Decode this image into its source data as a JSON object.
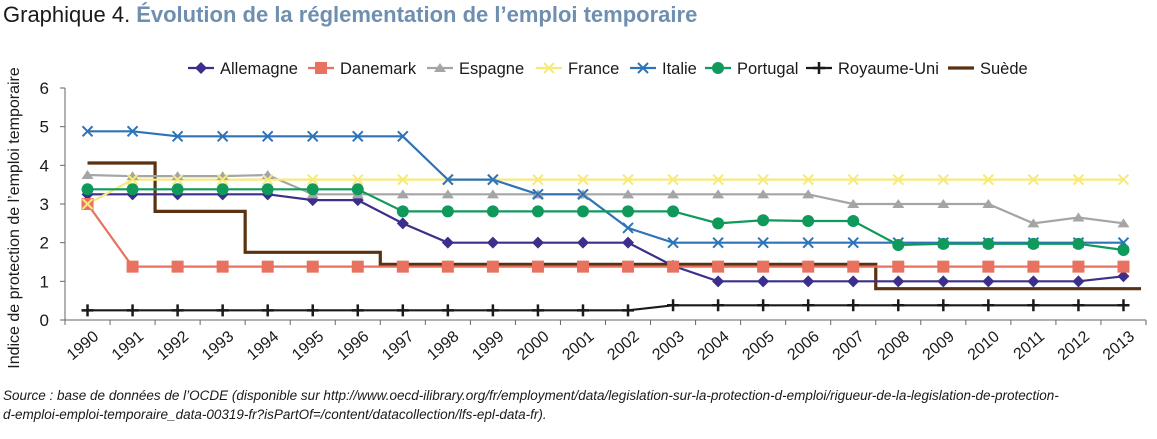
{
  "header": {
    "prefix": "Graphique 4.",
    "title": "Évolution de la réglementation de l’emploi temporaire"
  },
  "source": {
    "line1": "Source : base de données de l’OCDE (disponible sur http://www.oecd-ilibrary.org/fr/employment/data/legislation-sur-la-protection-d-emploi/rigueur-de-la-legislation-de-protection-",
    "line2": "d-emploi-emploi-temporaire_data-00319-fr?isPartOf=/content/datacollection/lfs-epl-data-fr)."
  },
  "chart_data": {
    "type": "line",
    "title": "Évolution de la réglementation de l’emploi temporaire",
    "xlabel": "",
    "ylabel": "Indice de protection de l’emploi temporaire",
    "ylim": [
      0,
      6
    ],
    "yticks": [
      "0",
      "1",
      "2",
      "3",
      "4",
      "5",
      "6"
    ],
    "grid": false,
    "legend_position": "top",
    "categories": [
      "1990",
      "1991",
      "1992",
      "1993",
      "1994",
      "1995",
      "1996",
      "1997",
      "1998",
      "1999",
      "2000",
      "2001",
      "2002",
      "2003",
      "2004",
      "2005",
      "2006",
      "2007",
      "2008",
      "2009",
      "2010",
      "2011",
      "2012",
      "2013"
    ],
    "series": [
      {
        "name": "Allemagne",
        "color": "#3c2f8c",
        "marker": "diamond",
        "step": false,
        "values": [
          3.25,
          3.25,
          3.25,
          3.25,
          3.25,
          3.1,
          3.1,
          2.5,
          2.0,
          2.0,
          2.0,
          2.0,
          2.0,
          1.4,
          1.0,
          1.0,
          1.0,
          1.0,
          1.0,
          1.0,
          1.0,
          1.0,
          1.0,
          1.13
        ]
      },
      {
        "name": "Danemark",
        "color": "#e8715f",
        "marker": "square",
        "step": false,
        "values": [
          3.0,
          1.38,
          1.38,
          1.38,
          1.38,
          1.38,
          1.38,
          1.38,
          1.38,
          1.38,
          1.38,
          1.38,
          1.38,
          1.38,
          1.38,
          1.38,
          1.38,
          1.38,
          1.38,
          1.38,
          1.38,
          1.38,
          1.38,
          1.38
        ]
      },
      {
        "name": "Espagne",
        "color": "#a5a5a5",
        "marker": "triangle",
        "step": false,
        "values": [
          3.75,
          3.72,
          3.72,
          3.72,
          3.75,
          3.25,
          3.25,
          3.25,
          3.25,
          3.25,
          3.25,
          3.25,
          3.25,
          3.25,
          3.25,
          3.25,
          3.25,
          3.0,
          3.0,
          3.0,
          3.0,
          2.5,
          2.65,
          2.5
        ]
      },
      {
        "name": "France",
        "color": "#f7ea7b",
        "marker": "x",
        "step": false,
        "values": [
          3.0,
          3.63,
          3.63,
          3.63,
          3.63,
          3.63,
          3.63,
          3.63,
          3.63,
          3.63,
          3.63,
          3.63,
          3.63,
          3.63,
          3.63,
          3.63,
          3.63,
          3.63,
          3.63,
          3.63,
          3.63,
          3.63,
          3.63,
          3.63
        ]
      },
      {
        "name": "Italie",
        "color": "#2e73b7",
        "marker": "x",
        "step": false,
        "values": [
          4.88,
          4.88,
          4.75,
          4.75,
          4.75,
          4.75,
          4.75,
          4.75,
          3.63,
          3.63,
          3.25,
          3.25,
          2.38,
          2.0,
          2.0,
          2.0,
          2.0,
          2.0,
          2.0,
          2.0,
          2.0,
          2.0,
          2.0,
          2.0
        ]
      },
      {
        "name": "Portugal",
        "color": "#0f9a5c",
        "marker": "circle",
        "step": false,
        "values": [
          3.38,
          3.38,
          3.38,
          3.38,
          3.38,
          3.38,
          3.38,
          2.81,
          2.81,
          2.81,
          2.81,
          2.81,
          2.81,
          2.81,
          2.5,
          2.58,
          2.56,
          2.56,
          1.94,
          1.97,
          1.97,
          1.97,
          1.97,
          1.81
        ]
      },
      {
        "name": "Royaume-Uni",
        "color": "#1a1a1a",
        "marker": "plus",
        "step": false,
        "values": [
          0.25,
          0.25,
          0.25,
          0.25,
          0.25,
          0.25,
          0.25,
          0.25,
          0.25,
          0.25,
          0.25,
          0.25,
          0.25,
          0.38,
          0.38,
          0.38,
          0.38,
          0.38,
          0.38,
          0.38,
          0.38,
          0.38,
          0.38,
          0.38
        ]
      },
      {
        "name": "Suède",
        "color": "#5a3212",
        "marker": "none",
        "step": true,
        "values": [
          4.06,
          4.06,
          2.81,
          2.81,
          1.75,
          1.75,
          1.75,
          1.44,
          1.44,
          1.44,
          1.44,
          1.44,
          1.44,
          1.44,
          1.44,
          1.44,
          1.44,
          1.44,
          0.81,
          0.81,
          0.81,
          0.81,
          0.81,
          0.81
        ]
      }
    ]
  }
}
